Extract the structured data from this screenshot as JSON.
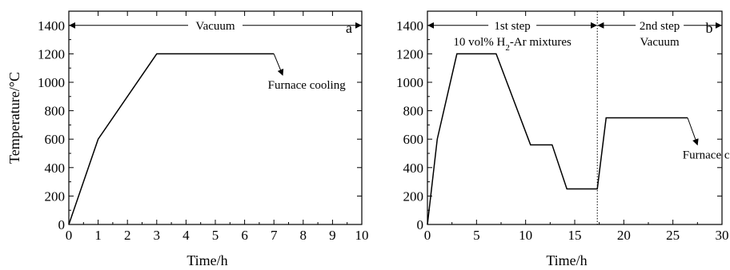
{
  "chart_data": [
    {
      "type": "line",
      "panel_label": "a",
      "xlabel": "Time/h",
      "ylabel": "Temperature/°C",
      "xlim": [
        0,
        10
      ],
      "ylim": [
        0,
        1500
      ],
      "xticks": [
        0,
        1,
        2,
        3,
        4,
        5,
        6,
        7,
        8,
        9,
        10
      ],
      "yticks": [
        0,
        200,
        400,
        600,
        800,
        1000,
        1200,
        1400
      ],
      "series": [
        {
          "x": [
            0,
            1,
            3,
            7
          ],
          "y": [
            0,
            600,
            1200,
            1200
          ]
        }
      ],
      "annotations": [
        {
          "text": "Vacuum",
          "type": "range-arrow",
          "x_start": 0,
          "x_end": 10,
          "y": 1400
        },
        {
          "text": "Furnace cooling",
          "type": "arrow",
          "from": [
            7,
            1200
          ],
          "to": [
            7.3,
            1050
          ]
        }
      ]
    },
    {
      "type": "line",
      "panel_label": "b",
      "xlabel": "Time/h",
      "ylabel": "",
      "xlim": [
        0,
        30
      ],
      "ylim": [
        0,
        1500
      ],
      "xticks": [
        0,
        5,
        10,
        15,
        20,
        25,
        30
      ],
      "yticks": [
        0,
        200,
        400,
        600,
        800,
        1000,
        1200,
        1400
      ],
      "series": [
        {
          "x": [
            0,
            1,
            3,
            7,
            10.5,
            12.7,
            14.2,
            17.3,
            18.2,
            26.5
          ],
          "y": [
            0,
            600,
            1200,
            1200,
            560,
            560,
            250,
            250,
            750,
            750
          ]
        }
      ],
      "vlines": [
        {
          "x": 17.3,
          "style": "dotted"
        }
      ],
      "annotations": [
        {
          "text": "1st step",
          "subtext_parts": [
            "10 vol% H",
            "2",
            "-Ar mixtures"
          ],
          "type": "range-arrow",
          "x_start": 0,
          "x_end": 17.3,
          "y": 1400
        },
        {
          "text": "2nd step",
          "subtext": "Vacuum",
          "type": "range-arrow",
          "x_start": 17.3,
          "x_end": 30,
          "y": 1400
        },
        {
          "text": "Furnace cooling",
          "type": "arrow",
          "from": [
            26.5,
            750
          ],
          "to": [
            27.5,
            560
          ]
        }
      ]
    }
  ]
}
